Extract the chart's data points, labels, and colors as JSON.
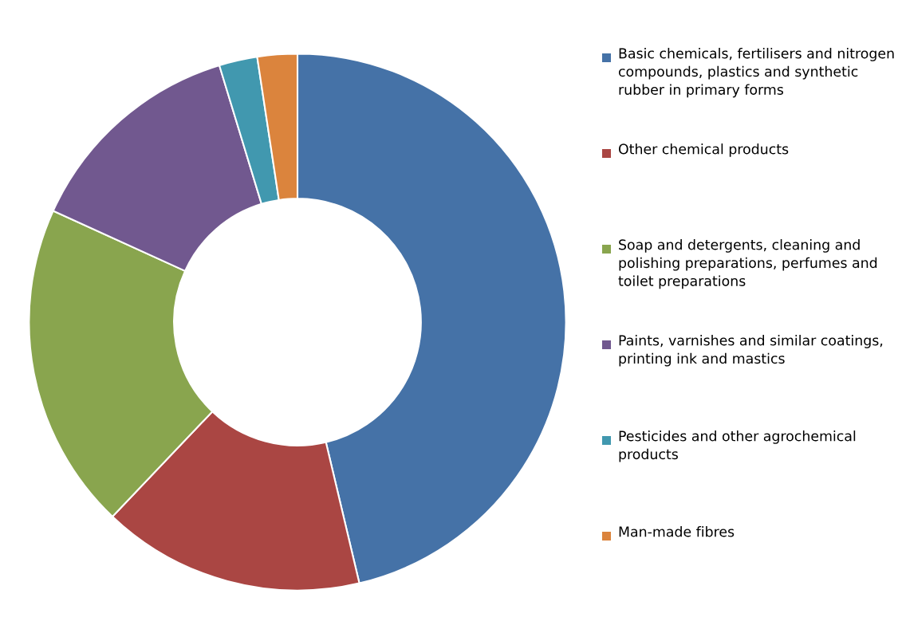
{
  "chart_data": {
    "type": "donut",
    "categories": [
      "Basic chemicals, fertilisers and nitrogen compounds, plastics and synthetic rubber in primary forms",
      "Other chemical products",
      "Soap and detergents, cleaning and polishing preparations, perfumes and toilet preparations",
      "Paints, varnishes and similar coatings, printing ink and mastics",
      "Pesticides and other agrochemical products",
      "Man-made fibres"
    ],
    "values": [
      46.3,
      15.8,
      19.7,
      13.5,
      2.3,
      2.4
    ],
    "colors": [
      "#4572a7",
      "#aa4643",
      "#89a54e",
      "#71588f",
      "#4198af",
      "#db843d"
    ],
    "legend": "right"
  }
}
